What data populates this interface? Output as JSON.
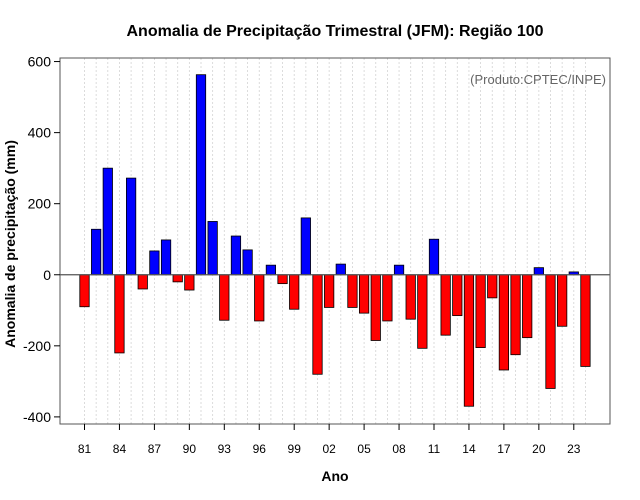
{
  "chart_data": {
    "type": "bar",
    "title": "Anomalia de Precipitação Trimestral (JFM): Região 100",
    "xlabel": "Ano",
    "ylabel": "Anomalia de precipitação (mm)",
    "annotation": "(Produto:CPTEC/INPE)",
    "ylim": [
      -420,
      610
    ],
    "yticks": [
      -400,
      -200,
      0,
      200,
      400,
      600
    ],
    "categories": [
      "1981",
      "1982",
      "1983",
      "1984",
      "1985",
      "1986",
      "1987",
      "1988",
      "1989",
      "1990",
      "1991",
      "1992",
      "1993",
      "1994",
      "1995",
      "1996",
      "1997",
      "1998",
      "1999",
      "2000",
      "2001",
      "2002",
      "2003",
      "2004",
      "2005",
      "2006",
      "2007",
      "2008",
      "2009",
      "2010",
      "2011",
      "2012",
      "2013",
      "2014",
      "2015",
      "2016",
      "2017",
      "2018",
      "2019",
      "2020",
      "2021",
      "2022",
      "2023",
      "2024"
    ],
    "values": [
      -90,
      128,
      300,
      -220,
      272,
      -40,
      67,
      98,
      -20,
      -43,
      563,
      150,
      -128,
      109,
      70,
      -130,
      27,
      -25,
      -97,
      160,
      -280,
      -92,
      30,
      -92,
      -108,
      -185,
      -130,
      27,
      -125,
      -207,
      100,
      -170,
      -115,
      -370,
      -205,
      -65,
      -268,
      -225,
      -177,
      20,
      -320,
      -145,
      8,
      -258
    ],
    "xtick_labels": [
      "81",
      "84",
      "87",
      "90",
      "93",
      "96",
      "99",
      "02",
      "05",
      "08",
      "11",
      "14",
      "17",
      "20",
      "23"
    ],
    "xtick_index": [
      0,
      3,
      6,
      9,
      12,
      15,
      18,
      21,
      24,
      27,
      30,
      33,
      36,
      39,
      42
    ],
    "colors": {
      "positive": "#0000ff",
      "negative": "#ff0000",
      "grid": "#d3d3d3",
      "zero_line": "#555555",
      "frame": "#555555"
    }
  }
}
